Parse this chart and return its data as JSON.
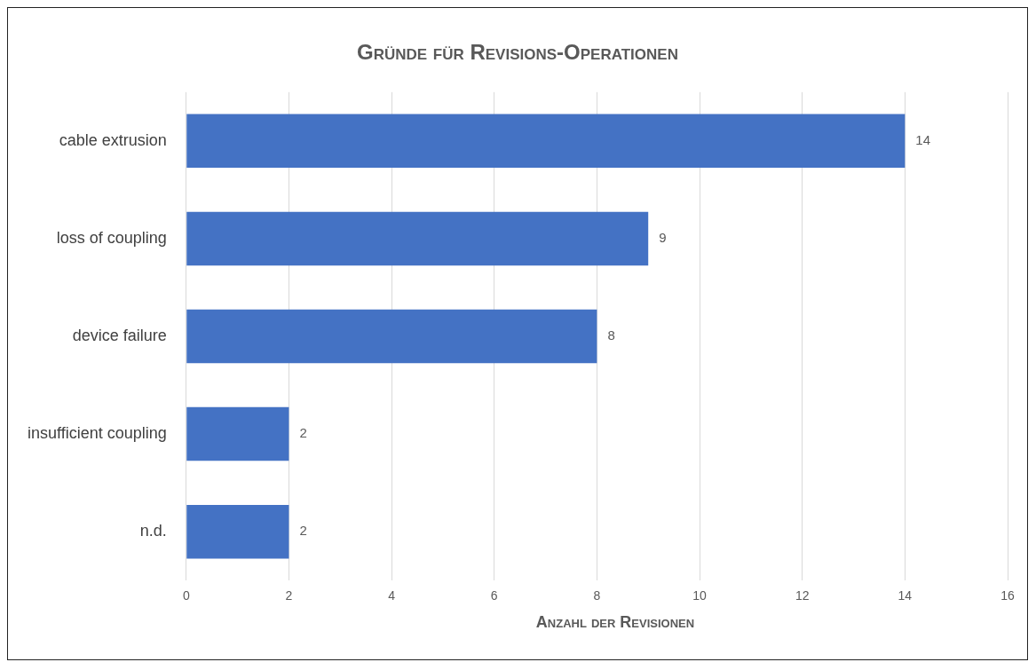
{
  "chart_data": {
    "type": "bar",
    "orientation": "horizontal",
    "title": "Gründe für Revisions-Operationen",
    "xlabel": "Anzahl der Revisionen",
    "categories": [
      "cable extrusion",
      "loss of coupling",
      "device failure",
      "insufficient coupling",
      "n.d."
    ],
    "values": [
      14,
      9,
      8,
      2,
      2
    ],
    "color": "#4472c4",
    "xlim": [
      0,
      16
    ],
    "xticks": [
      0,
      2,
      4,
      6,
      8,
      10,
      12,
      14,
      16
    ],
    "grid": "x",
    "data_labels": true
  }
}
